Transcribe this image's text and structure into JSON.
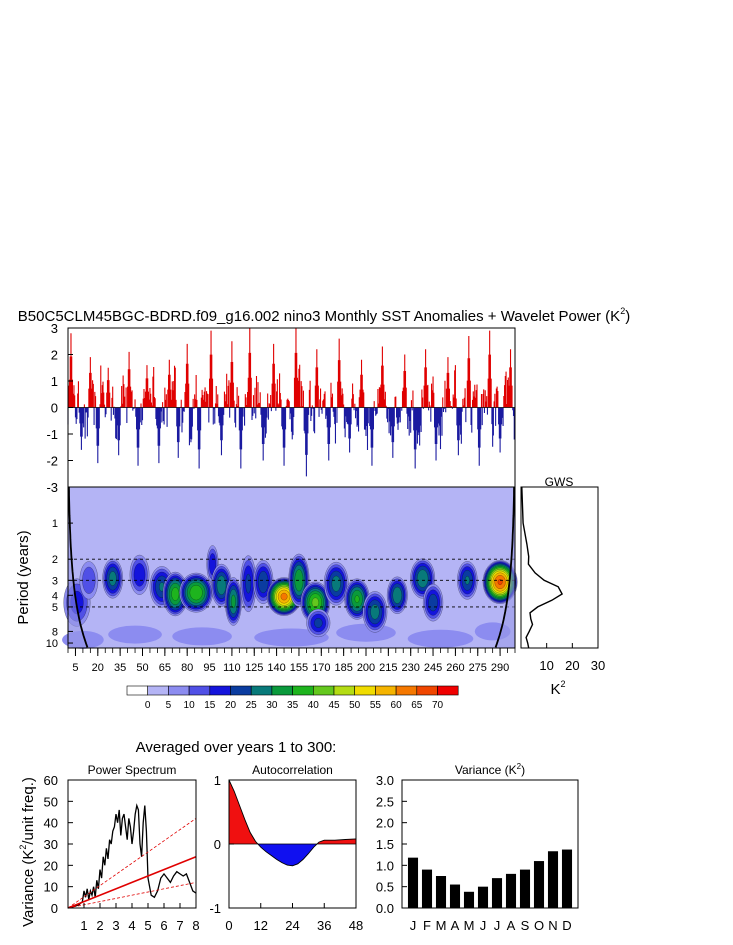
{
  "figure": {
    "main_title": "B50C5CLM45BGC-BDRD.f09_g16.002 nino3 Monthly SST Anomalies + Wavelet Power (K",
    "main_title_sup": "2",
    "main_title_tail": ")",
    "averaged_title": "Averaged over years 1 to 300:"
  },
  "chart_data": [
    {
      "type": "bar",
      "name": "timeseries",
      "y_ticks": [
        "3",
        "2",
        "1",
        "0",
        "-1",
        "-2",
        "-3"
      ],
      "ylim": [
        -3,
        3
      ],
      "xlim": [
        0,
        300
      ],
      "colors": {
        "positive": "#e00000",
        "negative": "#1a1aa0",
        "line": "#000000"
      },
      "peaks_x": [
        2,
        9,
        15,
        20,
        27,
        34,
        41,
        47,
        53,
        61,
        68,
        74,
        80,
        88,
        96,
        103,
        110,
        116,
        122,
        131,
        138,
        145,
        153,
        160,
        167,
        175,
        182,
        189,
        197,
        204,
        211,
        218,
        226,
        233,
        240,
        247,
        255,
        262,
        269,
        276,
        283,
        290,
        297
      ],
      "peaks_y": [
        2.8,
        -1.6,
        1.9,
        -2.1,
        1.5,
        -1.8,
        2.1,
        -2.2,
        1.6,
        -2.1,
        1.8,
        -1.9,
        2.4,
        -2.3,
        2.9,
        -1.8,
        2.5,
        -2.3,
        3.0,
        -2.0,
        2.4,
        -2.2,
        3.0,
        -2.6,
        2.2,
        -2.0,
        2.6,
        -1.7,
        1.8,
        -2.2,
        2.3,
        -1.9,
        2.0,
        -2.3,
        2.2,
        -2.0,
        1.9,
        -1.8,
        2.7,
        -2.2,
        2.9,
        -1.7,
        2.2
      ]
    },
    {
      "type": "heatmap",
      "name": "wavelet-power",
      "ylabel": "Period (years)",
      "y_ticks": [
        "1",
        "2",
        "3",
        "4",
        "5",
        "8",
        "10"
      ],
      "y_tick_values": [
        1,
        2,
        3,
        4,
        5,
        8,
        10
      ],
      "x_ticks": [
        "5",
        "20",
        "35",
        "50",
        "65",
        "80",
        "95",
        "110",
        "125",
        "140",
        "155",
        "170",
        "185",
        "200",
        "215",
        "230",
        "245",
        "260",
        "275",
        "290"
      ],
      "x_tick_values": [
        5,
        20,
        35,
        50,
        65,
        80,
        95,
        110,
        125,
        140,
        155,
        170,
        185,
        200,
        215,
        230,
        245,
        260,
        275,
        290
      ],
      "xlim": [
        0,
        300
      ],
      "period_range": [
        0.5,
        11
      ],
      "dashed_periods": [
        2,
        3,
        5
      ],
      "background_color": "#b4b4f5",
      "blobs": [
        {
          "t": 6,
          "p": 4.6,
          "v": 18,
          "rt": 7,
          "rp": 1.8
        },
        {
          "t": 14,
          "p": 3.0,
          "v": 15,
          "rt": 5,
          "rp": 0.9
        },
        {
          "t": 30,
          "p": 2.9,
          "v": 28,
          "rt": 5,
          "rp": 0.8
        },
        {
          "t": 48,
          "p": 2.7,
          "v": 20,
          "rt": 5,
          "rp": 0.8
        },
        {
          "t": 63,
          "p": 3.4,
          "v": 26,
          "rt": 6,
          "rp": 1.0
        },
        {
          "t": 72,
          "p": 3.9,
          "v": 38,
          "rt": 6,
          "rp": 1.2
        },
        {
          "t": 86,
          "p": 3.8,
          "v": 40,
          "rt": 8,
          "rp": 1.0
        },
        {
          "t": 97,
          "p": 2.2,
          "v": 20,
          "rt": 3,
          "rp": 0.6
        },
        {
          "t": 103,
          "p": 3.3,
          "v": 30,
          "rt": 5,
          "rp": 1.0
        },
        {
          "t": 111,
          "p": 4.5,
          "v": 32,
          "rt": 4,
          "rp": 1.6
        },
        {
          "t": 121,
          "p": 3.2,
          "v": 22,
          "rt": 4,
          "rp": 1.5
        },
        {
          "t": 131,
          "p": 3.1,
          "v": 25,
          "rt": 5,
          "rp": 1.0
        },
        {
          "t": 145,
          "p": 4.1,
          "v": 62,
          "rt": 8,
          "rp": 1.0
        },
        {
          "t": 155,
          "p": 3.0,
          "v": 35,
          "rt": 5,
          "rp": 1.2
        },
        {
          "t": 166,
          "p": 4.6,
          "v": 42,
          "rt": 7,
          "rp": 1.3
        },
        {
          "t": 168,
          "p": 6.8,
          "v": 22,
          "rt": 6,
          "rp": 1.2
        },
        {
          "t": 180,
          "p": 3.2,
          "v": 28,
          "rt": 6,
          "rp": 1.0
        },
        {
          "t": 194,
          "p": 4.3,
          "v": 36,
          "rt": 6,
          "rp": 1.2
        },
        {
          "t": 206,
          "p": 5.5,
          "v": 28,
          "rt": 6,
          "rp": 1.6
        },
        {
          "t": 221,
          "p": 4.0,
          "v": 30,
          "rt": 5,
          "rp": 1.0
        },
        {
          "t": 238,
          "p": 2.9,
          "v": 30,
          "rt": 6,
          "rp": 0.8
        },
        {
          "t": 245,
          "p": 4.6,
          "v": 24,
          "rt": 5,
          "rp": 1.2
        },
        {
          "t": 268,
          "p": 3.0,
          "v": 26,
          "rt": 5,
          "rp": 0.8
        },
        {
          "t": 290,
          "p": 3.1,
          "v": 66,
          "rt": 8,
          "rp": 0.9
        }
      ],
      "colorbar_labels": [
        "0",
        "5",
        "10",
        "15",
        "20",
        "25",
        "30",
        "35",
        "40",
        "45",
        "50",
        "55",
        "60",
        "65",
        "70"
      ],
      "colorbar_colors": [
        "#ffffff",
        "#b4b4f5",
        "#8c8cf0",
        "#5050e6",
        "#1414dc",
        "#0a3ca0",
        "#087a7a",
        "#0a9a3c",
        "#1eb41e",
        "#64c81e",
        "#b4dc14",
        "#f0dc00",
        "#f5b400",
        "#f57800",
        "#f04600",
        "#f00000"
      ]
    },
    {
      "type": "line",
      "name": "gws",
      "title": "GWS",
      "xlabel": "K",
      "xlabel_sup": "2",
      "x_ticks": [
        "10",
        "20",
        "30"
      ],
      "xlim": [
        0,
        30
      ],
      "period": [
        0.5,
        1.0,
        1.5,
        1.9,
        2.2,
        2.6,
        3.0,
        3.4,
        3.9,
        4.4,
        5.0,
        5.6,
        6.3,
        7.0,
        8.0,
        9.0,
        10.0,
        11.0
      ],
      "power": [
        0.3,
        0.8,
        2.3,
        3.0,
        2.9,
        5.5,
        9.0,
        14.5,
        16.0,
        12.0,
        6.5,
        3.5,
        3.8,
        4.5,
        3.2,
        2.0,
        2.6,
        3.0
      ]
    },
    {
      "type": "line",
      "name": "power-spectrum",
      "title": "Power Spectrum",
      "ylabel": "Variance (K",
      "ylabel_sup": "2",
      "ylabel_tail": "/unit freq.)",
      "x_ticks": [
        "1",
        "2",
        "3",
        "4",
        "5",
        "6",
        "7",
        "8"
      ],
      "y_ticks": [
        "0",
        "10",
        "20",
        "30",
        "40",
        "50",
        "60"
      ],
      "xlim": [
        0,
        8
      ],
      "ylim": [
        0,
        60
      ],
      "x": [
        0.1,
        0.3,
        0.5,
        0.7,
        0.9,
        1.0,
        1.1,
        1.2,
        1.3,
        1.4,
        1.5,
        1.6,
        1.7,
        1.8,
        1.9,
        2.0,
        2.1,
        2.2,
        2.3,
        2.4,
        2.5,
        2.6,
        2.7,
        2.8,
        2.9,
        3.0,
        3.1,
        3.2,
        3.3,
        3.4,
        3.5,
        3.6,
        3.7,
        3.8,
        3.9,
        4.0,
        4.1,
        4.2,
        4.3,
        4.4,
        4.5,
        4.6,
        4.7,
        4.8,
        4.9,
        5.0,
        5.2,
        5.4,
        5.6,
        5.8,
        6.0,
        6.2,
        6.4,
        6.6,
        6.8,
        7.0,
        7.2,
        7.4,
        7.6,
        7.8,
        8.0
      ],
      "y": [
        0.3,
        0.6,
        1,
        1.6,
        3,
        8,
        5,
        9,
        4,
        8,
        6,
        10,
        5,
        13,
        9,
        18,
        14,
        24,
        20,
        28,
        23,
        32,
        30,
        36,
        38,
        44,
        40,
        46,
        34,
        42,
        44,
        38,
        32,
        42,
        38,
        30,
        36,
        44,
        48,
        46,
        30,
        24,
        40,
        48,
        36,
        14,
        6,
        5,
        8,
        14,
        16,
        14,
        12,
        15,
        17,
        16,
        15,
        16,
        12,
        8,
        7
      ],
      "theory": {
        "x": [
          0,
          8
        ],
        "y": [
          0,
          24
        ]
      },
      "conf_upper": {
        "x": [
          0,
          8
        ],
        "y": [
          0,
          42
        ]
      },
      "conf_lower": {
        "x": [
          0,
          8
        ],
        "y": [
          0,
          12
        ]
      },
      "theory_color": "#e00000"
    },
    {
      "type": "area",
      "name": "autocorrelation",
      "title": "Autocorrelation",
      "x_ticks": [
        "0",
        "12",
        "24",
        "36",
        "48"
      ],
      "y_ticks": [
        "1",
        "0",
        "-1"
      ],
      "xlim": [
        0,
        48
      ],
      "ylim": [
        -1,
        1
      ],
      "x": [
        0,
        2,
        4,
        6,
        8,
        10,
        12,
        14,
        16,
        18,
        20,
        22,
        24,
        26,
        28,
        30,
        32,
        34,
        36,
        40,
        44,
        48
      ],
      "y": [
        1.0,
        0.82,
        0.6,
        0.38,
        0.18,
        0.04,
        -0.05,
        -0.12,
        -0.18,
        -0.24,
        -0.29,
        -0.33,
        -0.34,
        -0.31,
        -0.24,
        -0.15,
        -0.05,
        0.03,
        0.06,
        0.06,
        0.07,
        0.08
      ],
      "colors": {
        "positive": "#f01010",
        "negative": "#1010f0"
      }
    },
    {
      "type": "bar",
      "name": "monthly-variance",
      "title": "Variance (K",
      "title_sup": "2",
      "title_tail": ")",
      "categories": [
        "J",
        "F",
        "M",
        "A",
        "M",
        "J",
        "J",
        "A",
        "S",
        "O",
        "N",
        "D"
      ],
      "values": [
        1.18,
        0.9,
        0.75,
        0.55,
        0.38,
        0.5,
        0.7,
        0.8,
        0.9,
        1.1,
        1.33,
        1.37
      ],
      "y_ticks": [
        "3.0",
        "2.5",
        "2.0",
        "1.5",
        "1.0",
        "0.5",
        "0.0"
      ],
      "ylim": [
        0,
        3
      ]
    }
  ]
}
